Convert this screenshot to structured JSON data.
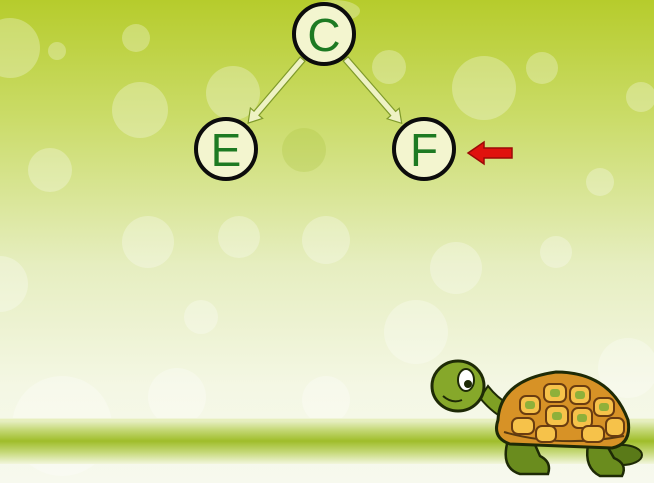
{
  "diagram": {
    "nodes": [
      {
        "id": "C",
        "label": "C"
      },
      {
        "id": "E",
        "label": "E"
      },
      {
        "id": "F",
        "label": "F"
      }
    ],
    "edges": [
      {
        "from": "C",
        "to": "E"
      },
      {
        "from": "C",
        "to": "F"
      }
    ],
    "highlighted_node": "F",
    "colors": {
      "node_fill": "#f3f5cf",
      "node_border": "#0c0c0c",
      "node_text": "#1d7a22",
      "edge_arrow": "#eef2c4",
      "pointer_arrow": "#e0120e",
      "ground_stripe": "#9fbd2a"
    }
  },
  "decorations": {
    "mascot": "turtle-icon",
    "background": "green-bokeh-gradient"
  }
}
